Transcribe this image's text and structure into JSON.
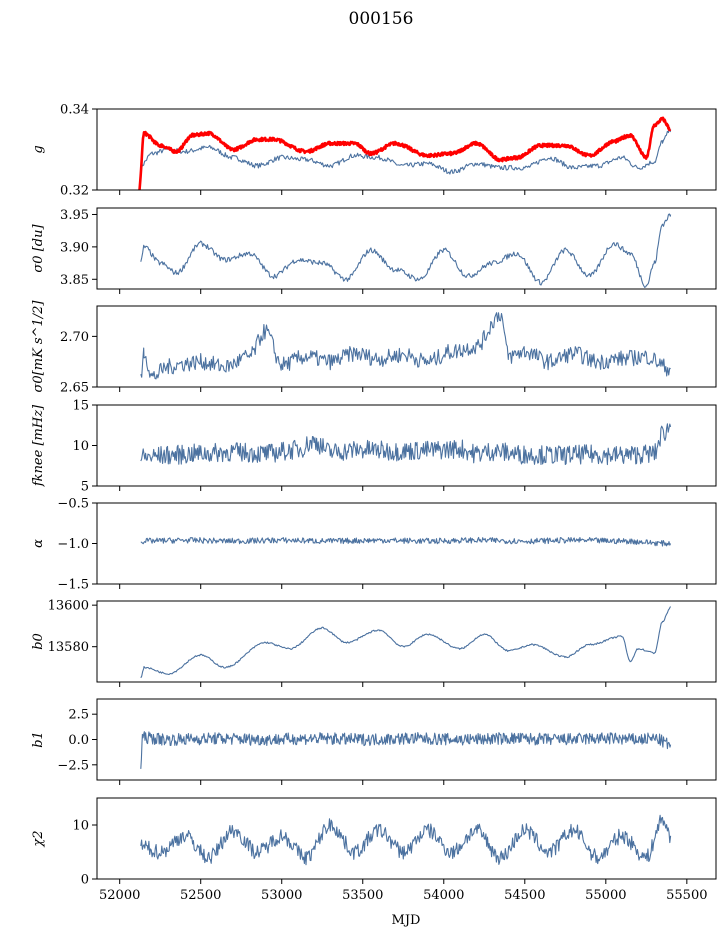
{
  "title": "000156",
  "xlabel": "MJD",
  "colors": {
    "series": "#4c72a0",
    "model": "#ff0000"
  },
  "x_ticks": [
    "52000",
    "52500",
    "53000",
    "53500",
    "54000",
    "54500",
    "55000",
    "55500"
  ],
  "chart_data": [
    {
      "type": "line",
      "ylabel": "g",
      "ylim": [
        0.32,
        0.34
      ],
      "yticks": [
        0.32,
        0.34
      ],
      "ytick_labels": [
        "0.32",
        "0.34"
      ],
      "series": [
        {
          "color": "#4c72a0",
          "x": [
            52130,
            52200,
            52300,
            52400,
            52550,
            52700,
            52850,
            53000,
            53150,
            53300,
            53450,
            53600,
            53750,
            53900,
            54050,
            54200,
            54350,
            54500,
            54650,
            54800,
            54950,
            55100,
            55200,
            55300,
            55350,
            55400
          ],
          "y": [
            0.326,
            0.329,
            0.33,
            0.3295,
            0.3305,
            0.328,
            0.326,
            0.328,
            0.3275,
            0.326,
            0.3285,
            0.328,
            0.326,
            0.3265,
            0.3245,
            0.3265,
            0.3255,
            0.3255,
            0.328,
            0.3255,
            0.326,
            0.328,
            0.3255,
            0.327,
            0.332,
            0.335
          ]
        },
        {
          "color": "#ff0000",
          "x": [
            52120,
            52150,
            52250,
            52350,
            52450,
            52550,
            52700,
            52850,
            52950,
            53150,
            53300,
            53450,
            53550,
            53700,
            53900,
            54050,
            54200,
            54350,
            54450,
            54600,
            54750,
            54900,
            55050,
            55150,
            55250,
            55300,
            55350,
            55400
          ],
          "y": [
            0.32,
            0.334,
            0.331,
            0.3295,
            0.3335,
            0.334,
            0.33,
            0.3325,
            0.3325,
            0.3295,
            0.3315,
            0.3315,
            0.329,
            0.3315,
            0.3285,
            0.329,
            0.3315,
            0.3275,
            0.328,
            0.331,
            0.331,
            0.3285,
            0.332,
            0.3335,
            0.328,
            0.336,
            0.3375,
            0.335
          ]
        }
      ]
    },
    {
      "type": "line",
      "ylabel": "σ0 [du]",
      "ylim": [
        3.835,
        3.96
      ],
      "yticks": [
        3.85,
        3.9,
        3.95
      ],
      "ytick_labels": [
        "3.85",
        "3.90",
        "3.95"
      ],
      "series": [
        {
          "color": "#4c72a0",
          "x": [
            52130,
            52150,
            52250,
            52350,
            52500,
            52650,
            52800,
            52950,
            53100,
            53250,
            53400,
            53550,
            53700,
            53850,
            54000,
            54150,
            54300,
            54450,
            54600,
            54750,
            54900,
            55050,
            55150,
            55250,
            55300,
            55350,
            55400
          ],
          "y": [
            3.875,
            3.9,
            3.875,
            3.86,
            3.905,
            3.88,
            3.89,
            3.855,
            3.88,
            3.875,
            3.85,
            3.895,
            3.865,
            3.85,
            3.895,
            3.855,
            3.875,
            3.89,
            3.845,
            3.895,
            3.855,
            3.905,
            3.89,
            3.84,
            3.875,
            3.935,
            3.95
          ]
        }
      ]
    },
    {
      "type": "line",
      "ylabel": "σ0[mK s^1/2]",
      "ylim": [
        2.65,
        2.73
      ],
      "yticks": [
        2.65,
        2.7
      ],
      "ytick_labels": [
        "2.65",
        "2.70"
      ],
      "series": [
        {
          "color": "#4c72a0",
          "x": [
            52130,
            52150,
            52200,
            52300,
            52400,
            52500,
            52650,
            52800,
            52900,
            53000,
            53150,
            53300,
            53450,
            53600,
            53750,
            53900,
            54050,
            54200,
            54350,
            54400,
            54500,
            54650,
            54800,
            54950,
            55100,
            55250,
            55400
          ],
          "y": [
            2.655,
            2.685,
            2.66,
            2.67,
            2.673,
            2.675,
            2.67,
            2.68,
            2.705,
            2.672,
            2.68,
            2.675,
            2.683,
            2.678,
            2.682,
            2.675,
            2.685,
            2.69,
            2.722,
            2.68,
            2.685,
            2.675,
            2.683,
            2.675,
            2.678,
            2.68,
            2.668
          ]
        }
      ]
    },
    {
      "type": "line",
      "ylabel": "fknee [mHz]",
      "ylim": [
        5,
        15
      ],
      "yticks": [
        5,
        10,
        15
      ],
      "ytick_labels": [
        "5",
        "10",
        "15"
      ],
      "series": [
        {
          "color": "#4c72a0",
          "x": [
            52130,
            52300,
            52500,
            52700,
            52900,
            53100,
            53200,
            53300,
            53500,
            53700,
            53900,
            54100,
            54200,
            54300,
            54500,
            54700,
            54900,
            55100,
            55300,
            55350,
            55400
          ],
          "y": [
            8.5,
            8.8,
            9.0,
            9.2,
            9.0,
            9.5,
            10.5,
            9.2,
            9.5,
            9.3,
            9.4,
            9.6,
            9.0,
            9.3,
            8.9,
            8.8,
            8.9,
            8.8,
            9.0,
            11.5,
            12.3
          ]
        }
      ]
    },
    {
      "type": "line",
      "ylabel": "α",
      "ylim": [
        -1.5,
        -0.5
      ],
      "yticks": [
        -1.5,
        -1.0,
        -0.5
      ],
      "ytick_labels": [
        "−1.5",
        "−1.0",
        "−0.5"
      ],
      "series": [
        {
          "color": "#4c72a0",
          "x": [
            52130,
            52400,
            52700,
            53000,
            53300,
            53600,
            53900,
            54200,
            54500,
            54800,
            55100,
            55400
          ],
          "y": [
            -0.97,
            -0.96,
            -0.97,
            -0.96,
            -0.97,
            -0.96,
            -0.97,
            -0.96,
            -0.97,
            -0.96,
            -0.97,
            -1.0
          ]
        }
      ]
    },
    {
      "type": "line",
      "ylabel": "b0",
      "ylim": [
        13563,
        13602
      ],
      "yticks": [
        13580,
        13600
      ],
      "ytick_labels": [
        "13580",
        "13600"
      ],
      "series": [
        {
          "color": "#4c72a0",
          "x": [
            52130,
            52150,
            52300,
            52500,
            52650,
            52900,
            53050,
            53250,
            53400,
            53600,
            53750,
            53900,
            54100,
            54250,
            54400,
            54550,
            54750,
            54900,
            55100,
            55150,
            55200,
            55300,
            55350,
            55400
          ],
          "y": [
            13565,
            13570,
            13567,
            13576,
            13570,
            13582,
            13579,
            13589,
            13582,
            13588,
            13580,
            13586,
            13579,
            13586,
            13578,
            13581,
            13575,
            13581,
            13585,
            13573,
            13579,
            13577,
            13592,
            13599
          ]
        }
      ]
    },
    {
      "type": "line",
      "ylabel": "b1",
      "ylim": [
        -4,
        4
      ],
      "yticks": [
        -2.5,
        0.0,
        2.5
      ],
      "ytick_labels": [
        "−2.5",
        "0.0",
        "2.5"
      ],
      "series": [
        {
          "color": "#4c72a0",
          "x": [
            52130,
            52140,
            52300,
            52600,
            52900,
            53200,
            53500,
            53800,
            54100,
            54400,
            54700,
            55000,
            55200,
            55300,
            55400
          ],
          "y": [
            -2.8,
            0.2,
            0.0,
            0.1,
            0.0,
            0.1,
            0.0,
            0.1,
            0.0,
            0.1,
            0.0,
            0.1,
            0.0,
            0.1,
            -0.5
          ]
        }
      ]
    },
    {
      "type": "line",
      "ylabel": "χ2",
      "ylim": [
        0,
        15
      ],
      "yticks": [
        0,
        10
      ],
      "ytick_labels": [
        "0",
        "10"
      ],
      "series": [
        {
          "color": "#4c72a0",
          "x": [
            52130,
            52250,
            52400,
            52550,
            52700,
            52850,
            53000,
            53150,
            53300,
            53450,
            53600,
            53750,
            53900,
            54050,
            54200,
            54350,
            54500,
            54650,
            54800,
            54950,
            55100,
            55250,
            55350,
            55400
          ],
          "y": [
            6,
            5,
            8,
            4,
            9,
            5,
            8,
            4,
            10,
            5,
            9,
            5,
            9,
            5,
            9,
            4,
            9,
            5,
            9,
            4,
            8,
            4,
            11,
            8
          ]
        }
      ]
    }
  ]
}
